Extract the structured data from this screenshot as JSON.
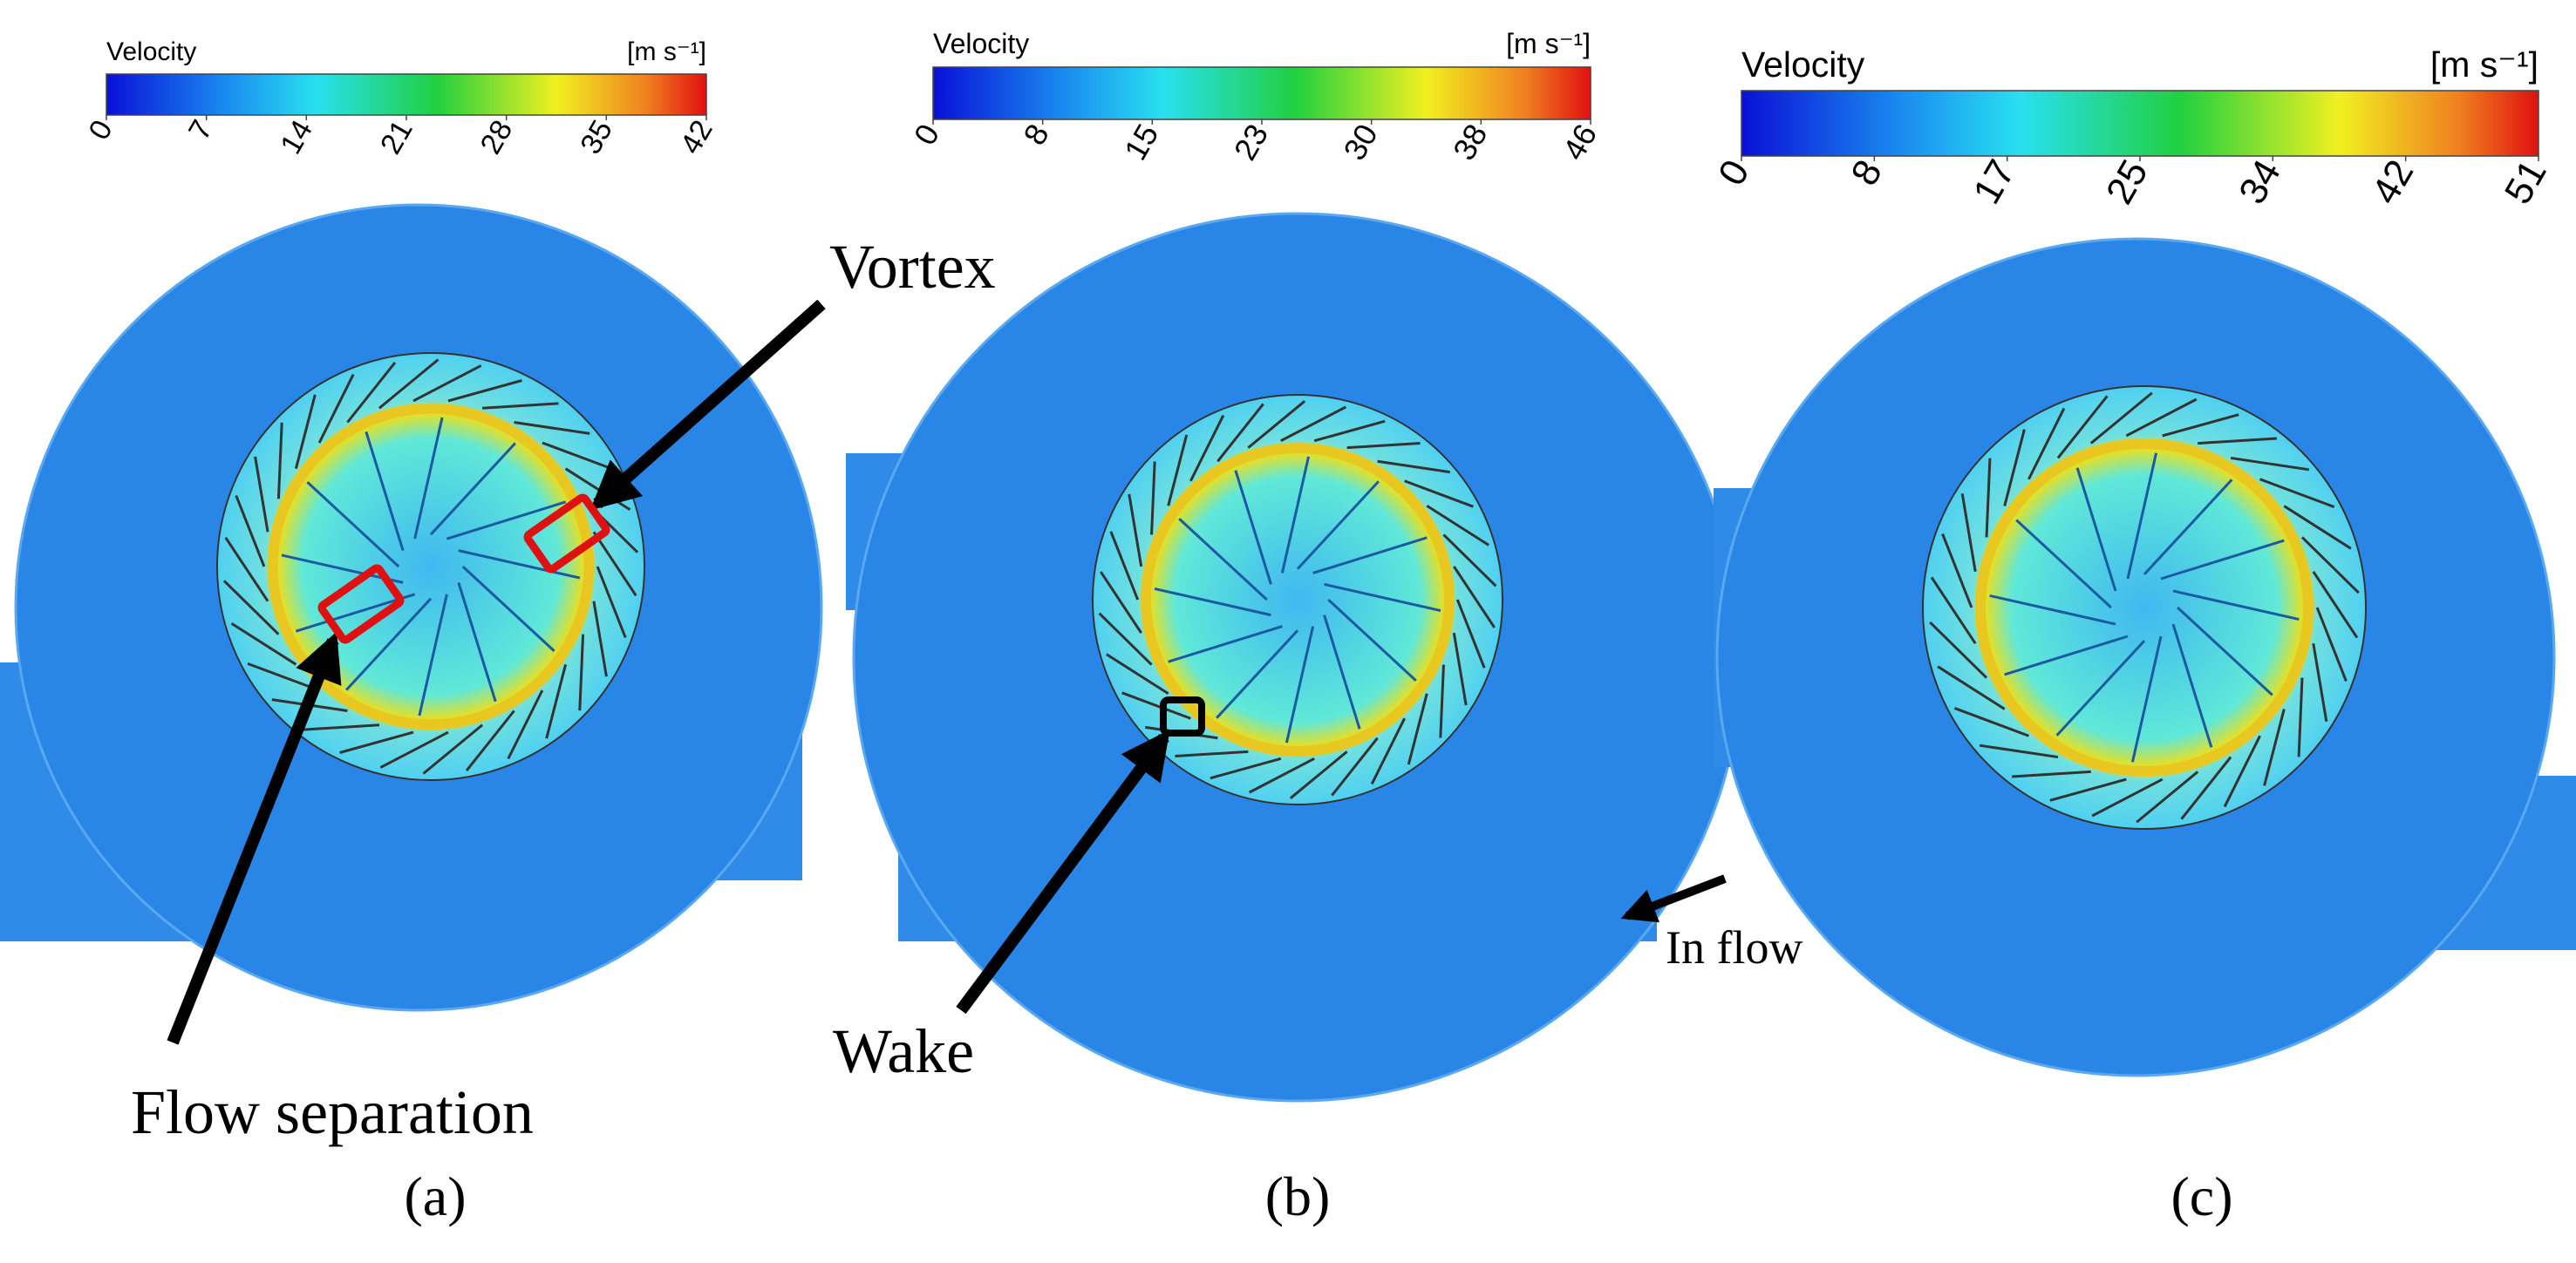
{
  "panels": [
    {
      "colorbar": {
        "title": "Velocity",
        "unit": "[m s⁻¹]",
        "ticks": [
          "0",
          "7",
          "14",
          "21",
          "28",
          "35",
          "42"
        ]
      },
      "label": "(a)"
    },
    {
      "colorbar": {
        "title": "Velocity",
        "unit": "[m s⁻¹]",
        "ticks": [
          "0",
          "8",
          "15",
          "23",
          "30",
          "38",
          "46"
        ]
      },
      "label": "(b)"
    },
    {
      "colorbar": {
        "title": "Velocity",
        "unit": "[m s⁻¹]",
        "ticks": [
          "0",
          "8",
          "17",
          "25",
          "34",
          "42",
          "51"
        ]
      },
      "label": "(c)"
    }
  ],
  "annotations": {
    "vortex": "Vortex",
    "flow_separation": "Flow separation",
    "wake": "Wake",
    "in_flow": "In flow"
  }
}
